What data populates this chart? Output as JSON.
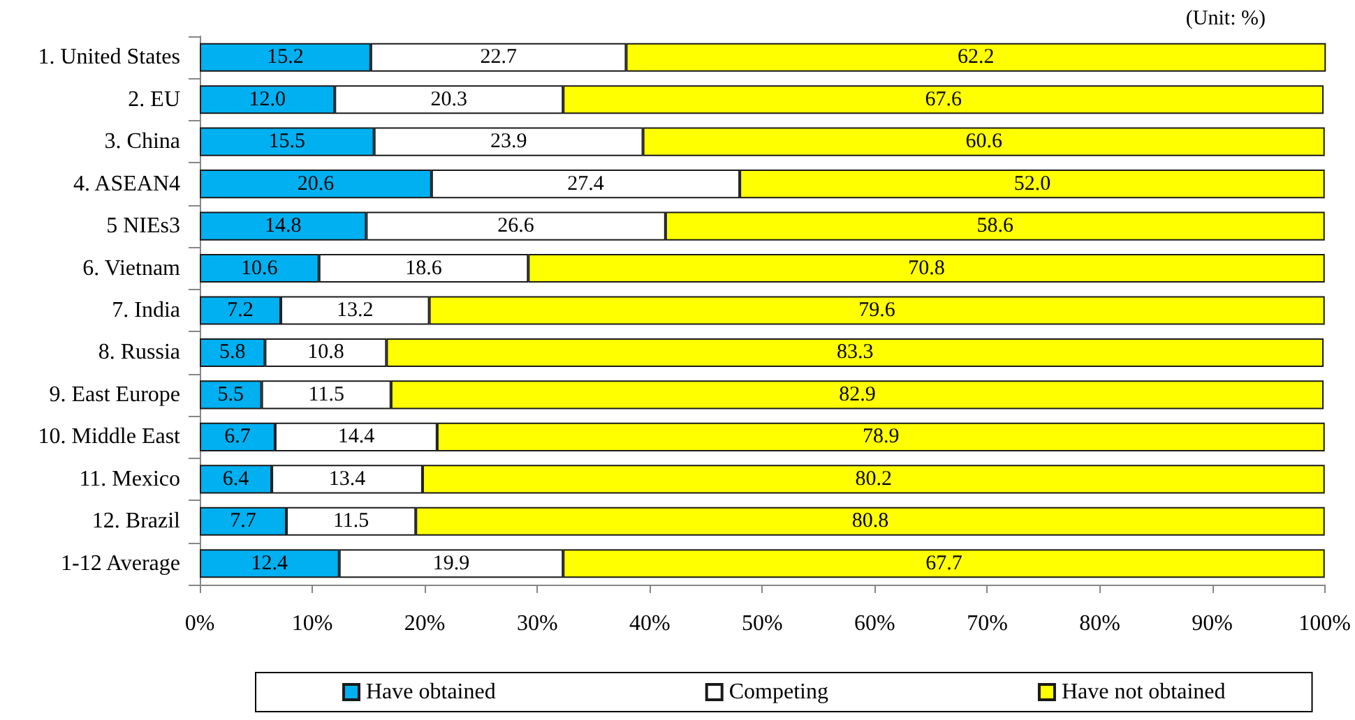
{
  "chart_data": {
    "type": "bar",
    "orientation": "horizontal",
    "stacked": true,
    "categories": [
      "1. United States",
      "2. EU",
      "3. China",
      "4. ASEAN4",
      "5 NIEs3",
      "6. Vietnam",
      "7. India",
      "8. Russia",
      "9. East Europe",
      "10. Middle East",
      "11. Mexico",
      "12. Brazil",
      "1-12 Average"
    ],
    "series": [
      {
        "name": "Have obtained",
        "color": "#00b0f0",
        "values": [
          15.2,
          12.0,
          15.5,
          20.6,
          14.8,
          10.6,
          7.2,
          5.8,
          5.5,
          6.7,
          6.4,
          7.7,
          12.4
        ],
        "value_labels": [
          "15.2",
          "12.0",
          "15.5",
          "20.6",
          "14.8",
          "10.6",
          "7.2",
          "5.8",
          "5.5",
          "6.7",
          "6.4",
          "7.7",
          "12.4"
        ]
      },
      {
        "name": "Competing",
        "color": "#ffffff",
        "values": [
          22.7,
          20.3,
          23.9,
          27.4,
          26.6,
          18.6,
          13.2,
          10.8,
          11.5,
          14.4,
          13.4,
          11.5,
          19.9
        ],
        "value_labels": [
          "22.7",
          "20.3",
          "23.9",
          "27.4",
          "26.6",
          "18.6",
          "13.2",
          "10.8",
          "11.5",
          "14.4",
          "13.4",
          "11.5",
          "19.9"
        ]
      },
      {
        "name": "Have not obtained",
        "color": "#ffff00",
        "values": [
          62.2,
          67.6,
          60.6,
          52.0,
          58.6,
          70.8,
          79.6,
          83.3,
          82.9,
          78.9,
          80.2,
          80.8,
          67.7
        ],
        "value_labels": [
          "62.2",
          "67.6",
          "60.6",
          "52.0",
          "58.6",
          "70.8",
          "79.6",
          "83.3",
          "82.9",
          "78.9",
          "80.2",
          "80.8",
          "67.7"
        ]
      }
    ],
    "xlim": [
      0,
      100
    ],
    "xticks": [
      {
        "value": 0,
        "label": "0%"
      },
      {
        "value": 10,
        "label": "10%"
      },
      {
        "value": 20,
        "label": "20%"
      },
      {
        "value": 30,
        "label": "30%"
      },
      {
        "value": 40,
        "label": "40%"
      },
      {
        "value": 50,
        "label": "50%"
      },
      {
        "value": 60,
        "label": "60%"
      },
      {
        "value": 70,
        "label": "70%"
      },
      {
        "value": 80,
        "label": "80%"
      },
      {
        "value": 90,
        "label": "90%"
      },
      {
        "value": 100,
        "label": "100%"
      }
    ],
    "grid": false,
    "legend": "bottom",
    "annotations": [
      "(Unit: %)"
    ]
  }
}
